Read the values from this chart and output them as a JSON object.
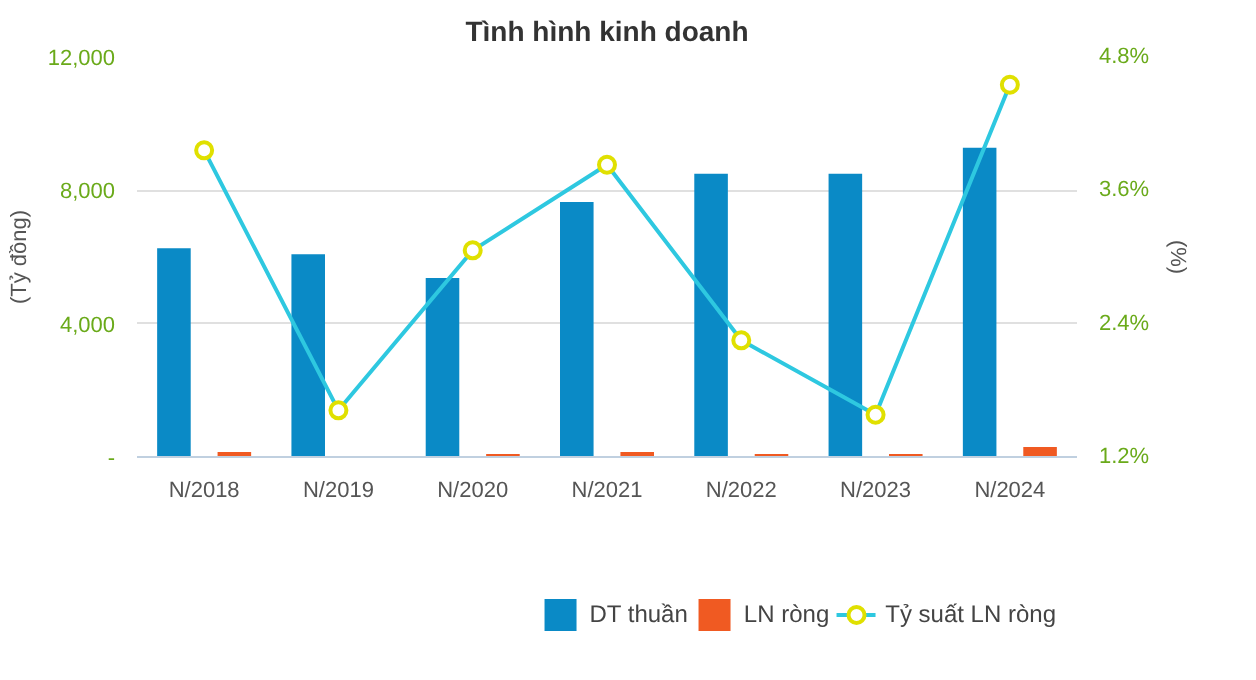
{
  "chart_data": {
    "type": "bar",
    "title": "Tình hình kinh doanh",
    "categories": [
      "N/2018",
      "N/2019",
      "N/2020",
      "N/2021",
      "N/2022",
      "N/2023",
      "N/2024"
    ],
    "series": [
      {
        "name": "DT thuần",
        "color": "#0a8ac6",
        "values": [
          6260,
          6080,
          5370,
          7650,
          8500,
          8500,
          9280
        ]
      },
      {
        "name": "LN ròng",
        "color": "#f05a22",
        "values": [
          150,
          null,
          90,
          150,
          90,
          90,
          300
        ]
      },
      {
        "name": "Tỷ suất LN ròng",
        "type": "line",
        "axis": "y2",
        "color": "#2ec8e0",
        "marker": "circle",
        "values": [
          3.96,
          1.62,
          3.06,
          3.83,
          2.25,
          1.58,
          4.55
        ]
      }
    ],
    "ylabel": "(Tỷ đồng)",
    "y2label": "(%)",
    "ylim": [
      0,
      12000
    ],
    "yticks": [
      {
        "value": 0,
        "label": "-"
      },
      {
        "value": 4000,
        "label": "4,000"
      },
      {
        "value": 8000,
        "label": "8,000"
      },
      {
        "value": 12000,
        "label": "12,000"
      }
    ],
    "y2lim": [
      1.2,
      4.8
    ],
    "y2ticks": [
      {
        "value": 1.2,
        "label": "1.2%"
      },
      {
        "value": 2.4,
        "label": "2.4%"
      },
      {
        "value": 3.6,
        "label": "3.6%"
      },
      {
        "value": 4.8,
        "label": "4.8%"
      }
    ],
    "grid": "y",
    "legend": "bottom"
  }
}
